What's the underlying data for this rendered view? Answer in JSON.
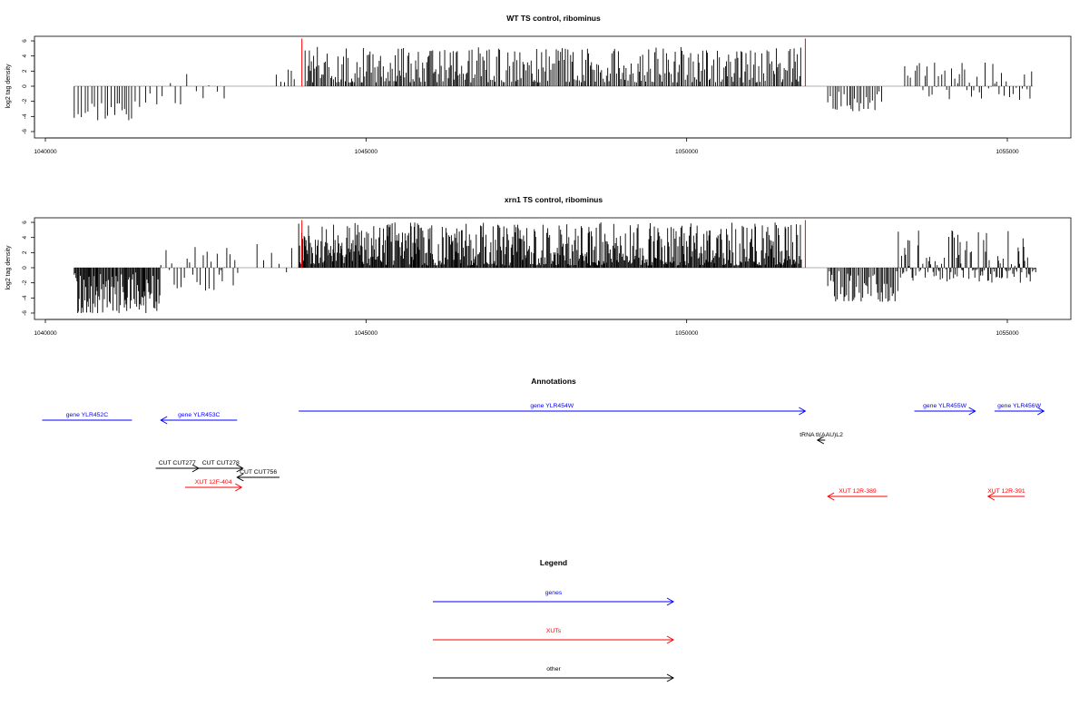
{
  "chart_data": [
    {
      "type": "bar",
      "title": "WT TS control, ribominus",
      "xlabel": "",
      "ylabel": "log2 tag density",
      "xlim": [
        1040000,
        1056000
      ],
      "ylim": [
        -6,
        6
      ],
      "x_ticks": [
        "1040000",
        "1045000",
        "1050000",
        "1055000"
      ],
      "y_ticks": [
        "-6",
        "-4",
        "-2",
        "0",
        "2",
        "4",
        "6"
      ],
      "red_markers_x": [
        1044000,
        1051850
      ],
      "series": [
        {
          "segments": [
            {
              "from": 1040450,
              "to": 1041350,
              "step": 45,
              "min": -4.5,
              "max": -0.8,
              "seed": 3
            },
            {
              "from": 1041400,
              "to": 1041850,
              "step": 100,
              "min": -3.0,
              "max": -0.5,
              "seed": 7
            },
            {
              "from": 1041950,
              "to": 1042850,
              "step": 110,
              "min": -3.2,
              "max": 2.0,
              "seed": 11
            },
            {
              "from": 1043600,
              "to": 1043950,
              "step": 70,
              "min": 0.5,
              "max": 3.0,
              "seed": 13
            },
            {
              "from": 1044050,
              "to": 1051800,
              "step": 22,
              "min": 0.5,
              "max": 5.2,
              "seed": 17
            },
            {
              "from": 1052200,
              "to": 1053050,
              "step": 35,
              "min": -3.3,
              "max": -0.6,
              "seed": 19
            },
            {
              "from": 1053400,
              "to": 1055400,
              "step": 40,
              "min": -2.0,
              "max": 3.3,
              "seed": 23
            }
          ]
        }
      ]
    },
    {
      "type": "bar",
      "title": "xrn1 TS control, ribominus",
      "xlabel": "",
      "ylabel": "log2 tag density",
      "xlim": [
        1040000,
        1056000
      ],
      "ylim": [
        -6,
        6
      ],
      "x_ticks": [
        "1040000",
        "1045000",
        "1050000",
        "1055000"
      ],
      "y_ticks": [
        "-6",
        "-4",
        "-2",
        "0",
        "2",
        "4",
        "6"
      ],
      "red_markers_x": [
        1044000,
        1051850
      ],
      "series": [
        {
          "segments": [
            {
              "from": 1040450,
              "to": 1041800,
              "step": 14,
              "min": -6.0,
              "max": -0.5,
              "seed": 29
            },
            {
              "from": 1041800,
              "to": 1043000,
              "step": 38,
              "min": -3.5,
              "max": 2.8,
              "seed": 31
            },
            {
              "from": 1043300,
              "to": 1043900,
              "step": 90,
              "min": -1.5,
              "max": 3.2,
              "seed": 37
            },
            {
              "from": 1043950,
              "to": 1051800,
              "step": 13,
              "min": 0.3,
              "max": 6.0,
              "seed": 41
            },
            {
              "from": 1052200,
              "to": 1053300,
              "step": 22,
              "min": -4.5,
              "max": -0.4,
              "seed": 43
            },
            {
              "from": 1053300,
              "to": 1055450,
              "step": 16,
              "min": -2.0,
              "max": 5.2,
              "seed": 47
            }
          ]
        }
      ]
    }
  ],
  "annotations": {
    "title": "Annotations",
    "features": [
      {
        "label": "gene YLR452C",
        "color": "#0000ff",
        "start": 1039950,
        "end": 1041350,
        "dir": "none"
      },
      {
        "label": "gene YLR453C",
        "color": "#0000ff",
        "start": 1041800,
        "end": 1042990,
        "dir": "left"
      },
      {
        "label": "gene YLR454W",
        "color": "#0000ff",
        "start": 1043950,
        "end": 1051850,
        "dir": "right"
      },
      {
        "label": "gene YLR455W",
        "color": "#0000ff",
        "start": 1053550,
        "end": 1054500,
        "dir": "right"
      },
      {
        "label": "gene YLR456W",
        "color": "#0000ff",
        "start": 1054800,
        "end": 1055570,
        "dir": "right"
      },
      {
        "label": "tRNA tI(AAU)L2",
        "color": "#000000",
        "start": 1052040,
        "end": 1052160,
        "dir": "left"
      },
      {
        "label": "CUT CUT277",
        "color": "#000000",
        "start": 1041720,
        "end": 1042390,
        "dir": "right"
      },
      {
        "label": "CUT CUT278",
        "color": "#000000",
        "start": 1042390,
        "end": 1043080,
        "dir": "right"
      },
      {
        "label": "CUT CUT756",
        "color": "#000000",
        "start": 1042990,
        "end": 1043650,
        "dir": "left"
      },
      {
        "label": "XUT 12F-404",
        "color": "#ff0000",
        "start": 1042180,
        "end": 1043060,
        "dir": "right"
      },
      {
        "label": "XUT 12R-389",
        "color": "#ff0000",
        "start": 1052200,
        "end": 1053130,
        "dir": "left"
      },
      {
        "label": "XUT 12R-391",
        "color": "#ff0000",
        "start": 1054700,
        "end": 1055270,
        "dir": "left"
      }
    ]
  },
  "legend": {
    "title": "Legend",
    "items": [
      {
        "label": "genes",
        "color": "#0000ff"
      },
      {
        "label": "XUTs",
        "color": "#ff0000"
      },
      {
        "label": "other",
        "color": "#000000"
      }
    ]
  }
}
